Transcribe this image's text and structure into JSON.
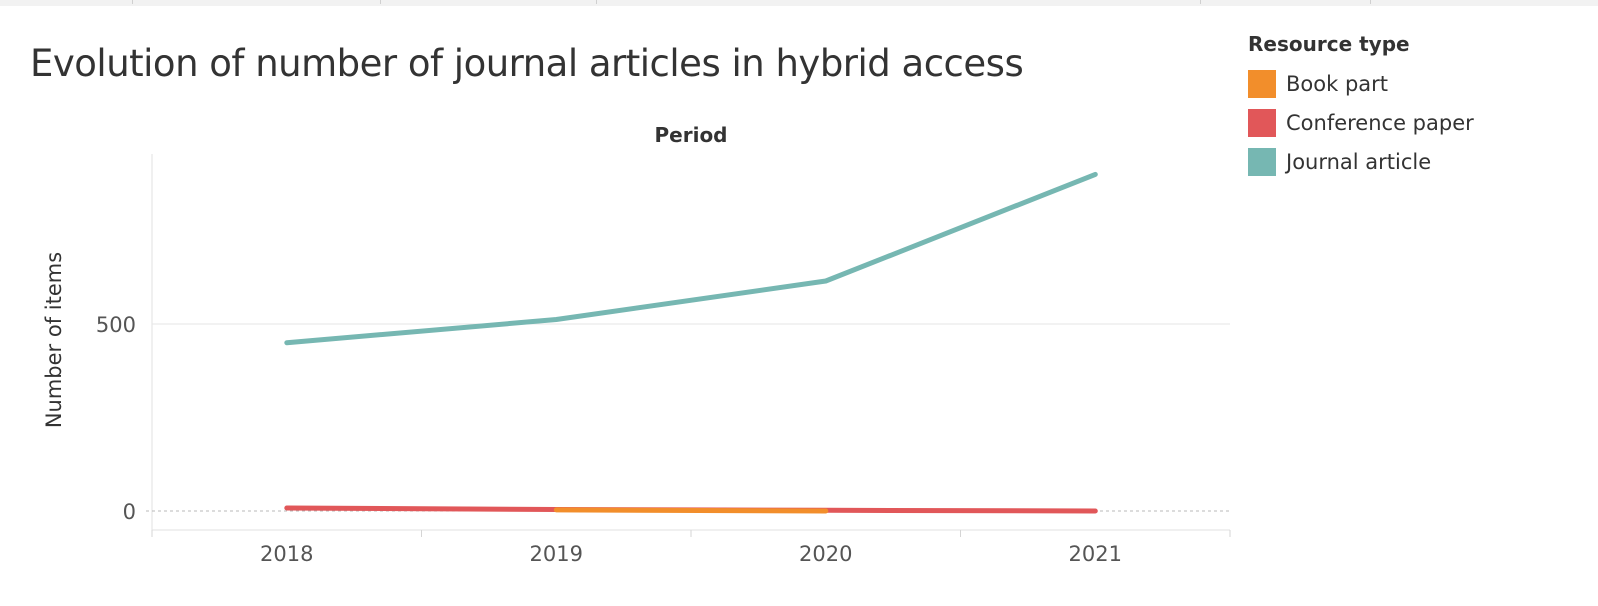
{
  "chart_data": {
    "type": "line",
    "title": "Evolution of number of journal articles in hybrid access",
    "header_label": "Period",
    "xlabel": "",
    "ylabel": "Number of items",
    "categories": [
      "2018",
      "2019",
      "2020",
      "2021"
    ],
    "y_ticks": [
      0,
      500
    ],
    "ylim": [
      -50,
      960
    ],
    "grid": true,
    "legend": {
      "title": "Resource type",
      "placement": "top-right"
    },
    "series": [
      {
        "name": "Book part",
        "color": "#f28e2b",
        "values": [
          null,
          3,
          0,
          null
        ]
      },
      {
        "name": "Conference paper",
        "color": "#e15759",
        "values": [
          8,
          4,
          2,
          0
        ]
      },
      {
        "name": "Journal article",
        "color": "#76b7b2",
        "values": [
          450,
          512,
          615,
          900
        ]
      }
    ]
  }
}
